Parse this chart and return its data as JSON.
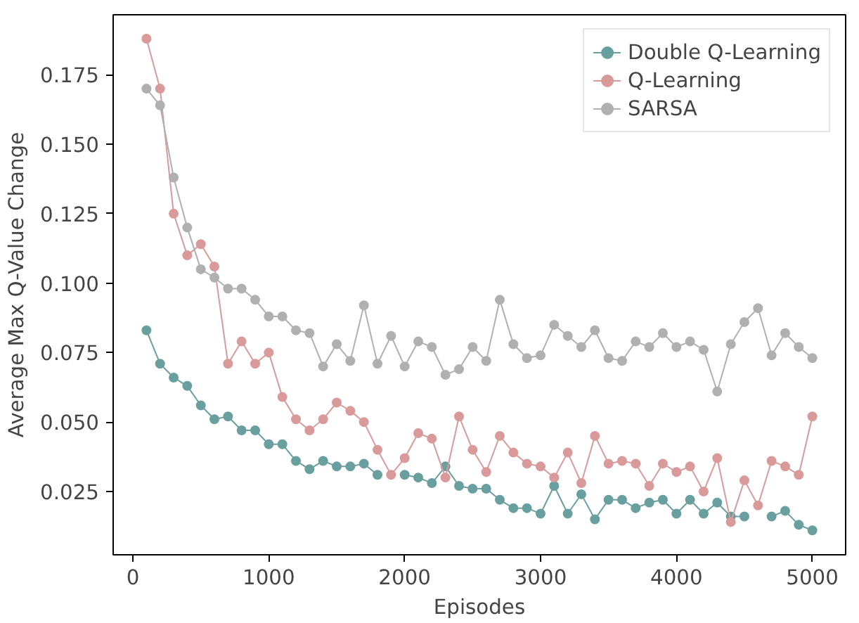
{
  "chart_data": {
    "type": "line",
    "xlabel": "Episodes",
    "ylabel": "Average Max Q-Value Change",
    "x": [
      100,
      200,
      300,
      400,
      500,
      600,
      700,
      800,
      900,
      1000,
      1100,
      1200,
      1300,
      1400,
      1500,
      1600,
      1700,
      1800,
      1900,
      2000,
      2100,
      2200,
      2300,
      2400,
      2500,
      2600,
      2700,
      2800,
      2900,
      3000,
      3100,
      3200,
      3300,
      3400,
      3500,
      3600,
      3700,
      3800,
      3900,
      4000,
      4100,
      4200,
      4300,
      4400,
      4500,
      4600,
      4700,
      4800,
      4900,
      5000
    ],
    "series": [
      {
        "name": "Double Q-Learning",
        "color": "#6a9fa0",
        "values": [
          0.083,
          0.071,
          0.066,
          0.063,
          0.056,
          0.051,
          0.052,
          0.047,
          0.047,
          0.042,
          0.042,
          0.036,
          0.033,
          0.036,
          0.034,
          0.034,
          0.035,
          0.031,
          null,
          0.031,
          0.03,
          0.028,
          0.034,
          0.027,
          0.026,
          0.026,
          0.022,
          0.019,
          0.019,
          0.017,
          0.027,
          0.017,
          0.024,
          0.015,
          0.022,
          0.022,
          0.019,
          0.021,
          0.022,
          0.017,
          0.022,
          0.017,
          0.021,
          0.016,
          0.016,
          null,
          0.016,
          0.018,
          0.013,
          0.011
        ]
      },
      {
        "name": "Q-Learning",
        "color": "#d99a9a",
        "values": [
          0.188,
          0.17,
          0.125,
          0.11,
          0.114,
          0.106,
          0.071,
          0.079,
          0.071,
          0.075,
          0.059,
          0.051,
          0.047,
          0.051,
          0.057,
          0.054,
          0.05,
          0.04,
          0.031,
          0.037,
          0.046,
          0.044,
          0.03,
          0.052,
          0.04,
          0.032,
          0.045,
          0.039,
          0.035,
          0.034,
          0.03,
          0.039,
          0.028,
          0.045,
          0.035,
          0.036,
          0.035,
          0.027,
          0.035,
          0.032,
          0.034,
          0.025,
          0.037,
          0.014,
          0.029,
          0.02,
          0.036,
          0.034,
          0.031,
          0.052
        ]
      },
      {
        "name": "SARSA",
        "color": "#b0b0b0",
        "values": [
          0.17,
          0.164,
          0.138,
          0.12,
          0.105,
          0.102,
          0.098,
          0.098,
          0.094,
          0.088,
          0.088,
          0.083,
          0.082,
          0.07,
          0.078,
          0.072,
          0.092,
          0.071,
          0.081,
          0.07,
          0.079,
          0.077,
          0.067,
          0.069,
          0.077,
          0.072,
          0.094,
          0.078,
          0.073,
          0.074,
          0.085,
          0.081,
          0.077,
          0.083,
          0.073,
          0.072,
          0.079,
          0.077,
          0.082,
          0.077,
          0.079,
          0.076,
          0.061,
          0.078,
          0.086,
          0.091,
          0.074,
          0.082,
          0.077,
          0.073
        ]
      }
    ],
    "xlim": [
      -145,
      5245
    ],
    "ylim": [
      0.0022,
      0.1966
    ],
    "xticks": [
      0,
      1000,
      2000,
      3000,
      4000,
      5000
    ],
    "yticks": [
      {
        "value": 0.025,
        "label": "0.025"
      },
      {
        "value": 0.05,
        "label": "0.050"
      },
      {
        "value": 0.075,
        "label": "0.075"
      },
      {
        "value": 0.1,
        "label": "0.100"
      },
      {
        "value": 0.125,
        "label": "0.125"
      },
      {
        "value": 0.15,
        "label": "0.150"
      },
      {
        "value": 0.175,
        "label": "0.175"
      }
    ],
    "grid": false,
    "legend": "top right",
    "marker": "circle",
    "line_style": "solid"
  }
}
